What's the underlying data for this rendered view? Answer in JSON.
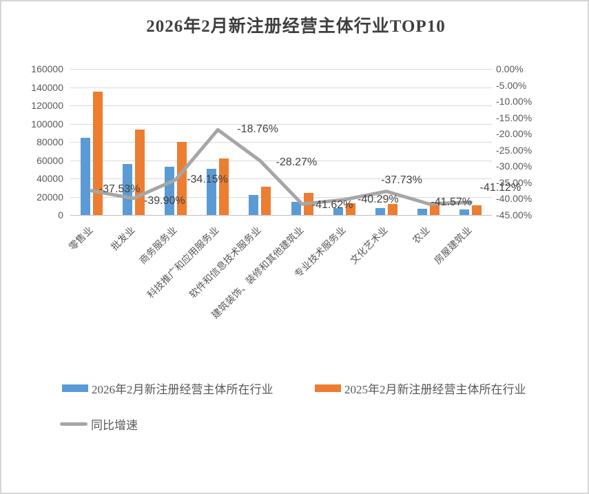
{
  "chart_data": {
    "type": "bar",
    "subtype": "grouped bars with secondary-axis line (combo chart)",
    "title": "2026年2月新注册经营主体行业TOP10",
    "categories": [
      "零售业",
      "批发业",
      "商务服务业",
      "科技推广和应用服务业",
      "软件和信息技术服务业",
      "建筑装饰、装修和其他建筑业",
      "专业技术服务业",
      "文化艺术业",
      "农业",
      "房屋建筑业"
    ],
    "series": [
      {
        "name": "2026年2月新注册经营主体所在行业",
        "type": "bar",
        "color": "#5B9BD5",
        "values": [
          84300,
          56200,
          52800,
          50400,
          22200,
          14200,
          7500,
          7350,
          6430,
          6100
        ]
      },
      {
        "name": "2025年2月新注册经营主体所在行业",
        "type": "bar",
        "color": "#ED7D31",
        "values": [
          135000,
          93500,
          80200,
          62000,
          31000,
          24300,
          12550,
          11800,
          11000,
          10400
        ]
      },
      {
        "name": "同比增速",
        "type": "line",
        "color": "#A6A6A6",
        "axis": "right",
        "values": [
          -37.53,
          -39.9,
          -34.15,
          -18.76,
          -28.27,
          -41.62,
          -40.29,
          -37.73,
          -41.57,
          -41.12
        ],
        "point_labels": [
          "-37.53%",
          "-39.90%",
          "-34.15%",
          "-18.76%",
          "-28.27%",
          "-41.62%",
          "-40.29%",
          "-37.73%",
          "-41.57%",
          "-41.12%"
        ]
      }
    ],
    "left_axis": {
      "min": 0,
      "max": 160000,
      "step": 20000,
      "ticks": [
        "160000",
        "140000",
        "120000",
        "100000",
        "80000",
        "60000",
        "40000",
        "20000",
        "0"
      ]
    },
    "right_axis": {
      "min": -45,
      "max": 0,
      "step": -5,
      "ticks": [
        "0.00%",
        "-5.00%",
        "-10.00%",
        "-15.00%",
        "-20.00%",
        "-25.00%",
        "-30.00%",
        "-35.00%",
        "-40.00%",
        "-45.00%"
      ]
    },
    "grid": "horizontal gridlines on",
    "legend_position": "bottom-left, two rows"
  },
  "colors": {
    "bar_2026": "#5B9BD5",
    "bar_2025": "#ED7D31",
    "growth_line": "#A6A6A6",
    "gridline": "#D9D9D9",
    "tick_text": "#595959",
    "title_text": "#3F3F3F"
  }
}
